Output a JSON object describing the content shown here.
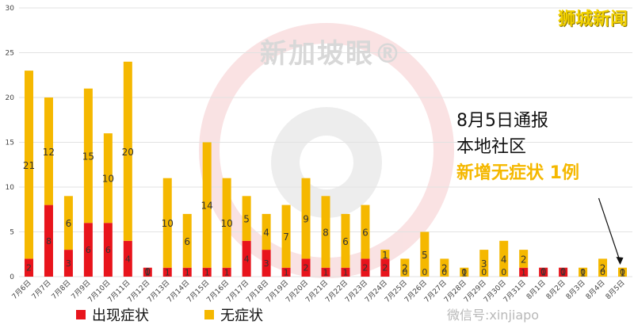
{
  "brand_text": "狮城新闻",
  "watermark": "新加坡眼®",
  "wechat_text": "微信号:xinjiapo",
  "annotation": {
    "line1": "8月5日通报",
    "line2": "本地社区",
    "line3": "新增无症状 1例"
  },
  "colors": {
    "symptomatic": "#e8141c",
    "asymptomatic": "#f5b800",
    "grid": "#e2e2e2",
    "axis_text": "#444444"
  },
  "chart_data": {
    "type": "bar",
    "stacked": true,
    "categories": [
      "7月6日",
      "7月7日",
      "7月8日",
      "7月9日",
      "7月10日",
      "7月11日",
      "7月12日",
      "7月13日",
      "7月14日",
      "7月15日",
      "7月16日",
      "7月17日",
      "7月18日",
      "7月19日",
      "7月20日",
      "7月21日",
      "7月22日",
      "7月23日",
      "7月24日",
      "7月25日",
      "7月26日",
      "7月27日",
      "7月28日",
      "7月29日",
      "7月30日",
      "7月31日",
      "8月1日",
      "8月2日",
      "8月3日",
      "8月4日",
      "8月5日"
    ],
    "series": [
      {
        "name": "出现症状",
        "values": [
          2,
          8,
          3,
          6,
          6,
          4,
          1,
          1,
          1,
          1,
          1,
          4,
          3,
          1,
          2,
          1,
          1,
          2,
          2,
          0,
          0,
          0,
          0,
          0,
          0,
          1,
          1,
          1,
          0,
          0,
          0
        ]
      },
      {
        "name": "无症状",
        "values": [
          21,
          12,
          6,
          15,
          10,
          20,
          0,
          10,
          6,
          14,
          10,
          5,
          4,
          7,
          9,
          8,
          6,
          6,
          1,
          2,
          5,
          2,
          1,
          3,
          4,
          2,
          0,
          0,
          1,
          2,
          1
        ]
      }
    ],
    "ylim": [
      0,
      30
    ],
    "yticks": [
      0,
      5,
      10,
      15,
      20,
      25,
      30
    ],
    "grid": true,
    "legend": "bottom-left"
  }
}
